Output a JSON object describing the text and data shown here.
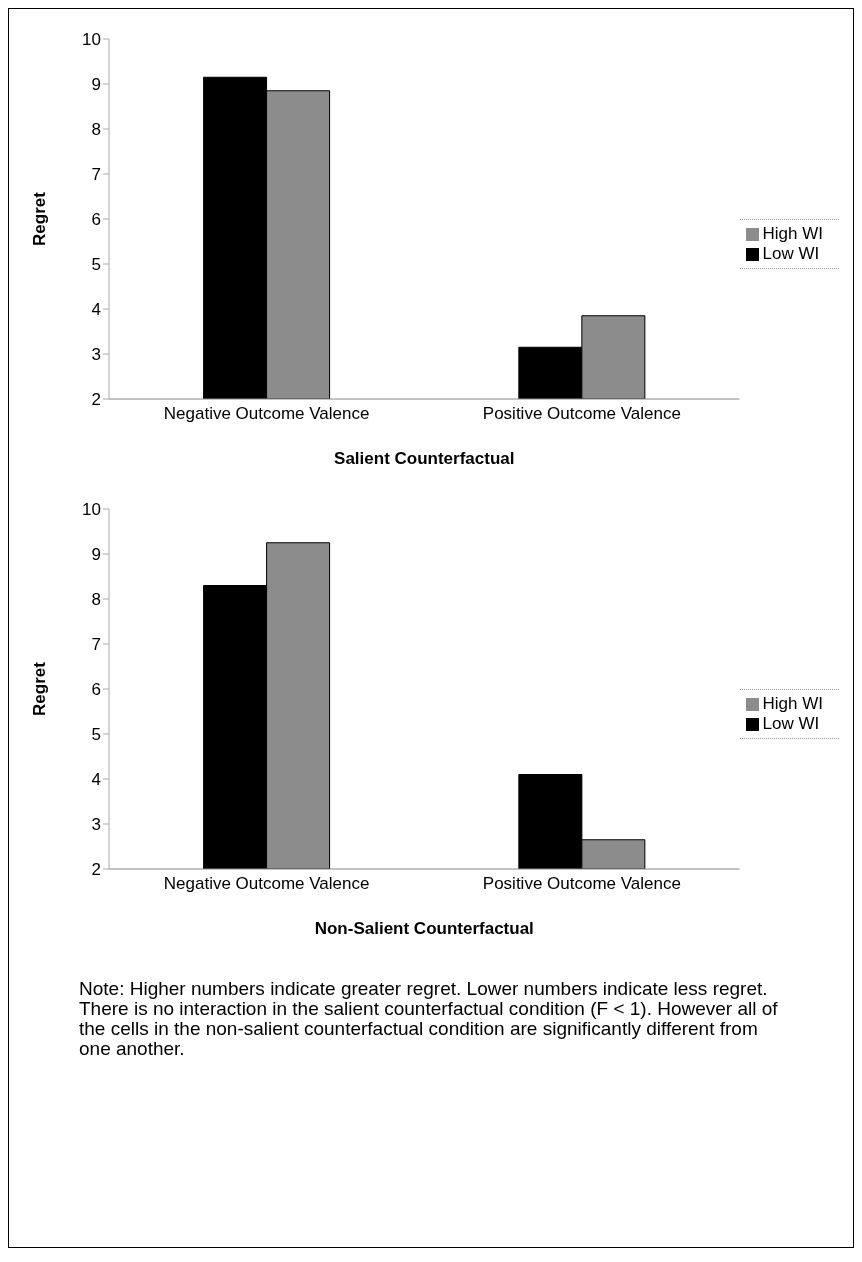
{
  "chart_data": [
    {
      "type": "bar",
      "categories": [
        "Negative Outcome Valence",
        "Positive Outcome Valence"
      ],
      "xlabel": "Salient Counterfactual",
      "ylabel": "Regret",
      "ylim": [
        2,
        10
      ],
      "yticks": [
        2,
        3,
        4,
        5,
        6,
        7,
        8,
        9,
        10
      ],
      "grid": false,
      "legend": "right",
      "series": [
        {
          "name": "Low WI",
          "color": "#000000",
          "values": [
            9.15,
            3.15
          ]
        },
        {
          "name": "High WI",
          "color": "#8c8c8c",
          "values": [
            8.85,
            3.85
          ]
        }
      ]
    },
    {
      "type": "bar",
      "categories": [
        "Negative Outcome Valence",
        "Positive Outcome Valence"
      ],
      "xlabel": "Non-Salient Counterfactual",
      "ylabel": "Regret",
      "ylim": [
        2,
        10
      ],
      "yticks": [
        2,
        3,
        4,
        5,
        6,
        7,
        8,
        9,
        10
      ],
      "grid": false,
      "legend": "right",
      "series": [
        {
          "name": "Low WI",
          "color": "#000000",
          "values": [
            8.3,
            4.1
          ]
        },
        {
          "name": "High WI",
          "color": "#8c8c8c",
          "values": [
            9.25,
            2.65
          ]
        }
      ],
      "annotations": [
        "Note:  Higher numbers indicate greater regret. Lower numbers indicate less regret. There is no interaction in the salient counterfactual condition (F < 1). However all of the cells in the non-salient counterfactual condition are significantly different from one another."
      ]
    }
  ]
}
